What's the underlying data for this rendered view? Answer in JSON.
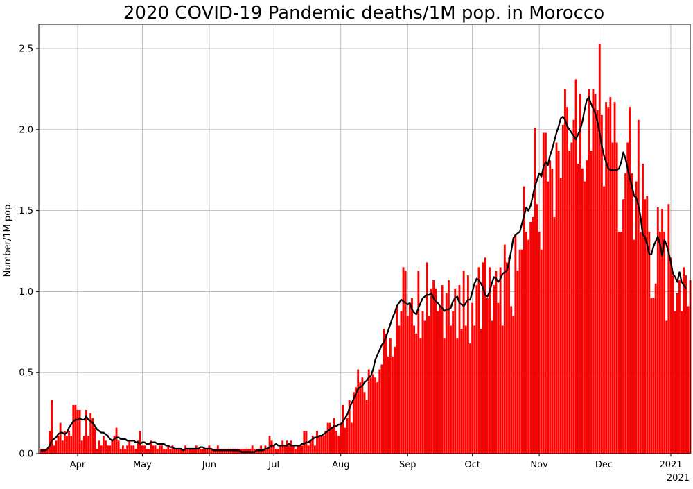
{
  "chart_data": {
    "type": "bar",
    "title": "2020 COVID-19 Pandemic deaths/1M pop. in Morocco",
    "xlabel": "",
    "ylabel": "Number/1M pop.",
    "x_offset_label": "2021",
    "ylim": [
      0,
      2.65
    ],
    "yticks": [
      "0.0",
      "0.5",
      "1.0",
      "1.5",
      "2.0",
      "2.5"
    ],
    "xticks": [
      {
        "label": "Apr",
        "day": 92
      },
      {
        "label": "May",
        "day": 122
      },
      {
        "label": "Jun",
        "day": 153
      },
      {
        "label": "Jul",
        "day": 183
      },
      {
        "label": "Aug",
        "day": 214
      },
      {
        "label": "Sep",
        "day": 245
      },
      {
        "label": "Oct",
        "day": 275
      },
      {
        "label": "Nov",
        "day": 306
      },
      {
        "label": "Dec",
        "day": 336
      },
      {
        "label": "2021",
        "day": 367
      }
    ],
    "grid": true,
    "bar_color": "#ff0000",
    "line_color": "#000000",
    "series": [
      {
        "name": "",
        "kind": "daily",
        "start_date": "2020-03-15",
        "values": [
          0.03,
          0.03,
          0.03,
          0.03,
          0.14,
          0.33,
          0.05,
          0.08,
          0.11,
          0.19,
          0.08,
          0.14,
          0.11,
          0.14,
          0.11,
          0.3,
          0.3,
          0.27,
          0.27,
          0.08,
          0.11,
          0.27,
          0.11,
          0.25,
          0.22,
          0.16,
          0.03,
          0.08,
          0.05,
          0.11,
          0.08,
          0.05,
          0.05,
          0.08,
          0.11,
          0.16,
          0.08,
          0.03,
          0.05,
          0.03,
          0.05,
          0.08,
          0.05,
          0.05,
          0.03,
          0.08,
          0.14,
          0.05,
          0.05,
          0.03,
          0.03,
          0.08,
          0.05,
          0.05,
          0.03,
          0.05,
          0.05,
          0.03,
          0.03,
          0.05,
          0.03,
          0.05,
          0.03,
          0.03,
          0.03,
          0.03,
          0.03,
          0.05,
          0.03,
          0.03,
          0.03,
          0.03,
          0.05,
          0.03,
          0.03,
          0.03,
          0.03,
          0.03,
          0.05,
          0.03,
          0.03,
          0.03,
          0.05,
          0.03,
          0.03,
          0.03,
          0.03,
          0.03,
          0.03,
          0.03,
          0.03,
          0.03,
          0.03,
          0.03,
          0.03,
          0.03,
          0.03,
          0.03,
          0.05,
          0.03,
          0.03,
          0.03,
          0.05,
          0.03,
          0.05,
          0.03,
          0.11,
          0.08,
          0.05,
          0.03,
          0.03,
          0.05,
          0.08,
          0.05,
          0.08,
          0.05,
          0.08,
          0.05,
          0.03,
          0.05,
          0.05,
          0.05,
          0.14,
          0.14,
          0.05,
          0.08,
          0.11,
          0.05,
          0.14,
          0.11,
          0.11,
          0.11,
          0.14,
          0.19,
          0.19,
          0.16,
          0.22,
          0.14,
          0.11,
          0.19,
          0.3,
          0.16,
          0.22,
          0.33,
          0.19,
          0.38,
          0.41,
          0.52,
          0.44,
          0.47,
          0.38,
          0.33,
          0.52,
          0.47,
          0.49,
          0.47,
          0.44,
          0.52,
          0.55,
          0.77,
          0.74,
          0.6,
          0.71,
          0.6,
          0.66,
          0.91,
          0.79,
          0.88,
          1.15,
          1.13,
          0.85,
          0.93,
          0.96,
          0.79,
          0.74,
          1.13,
          0.71,
          0.88,
          0.82,
          1.18,
          0.85,
          1.02,
          1.07,
          1.02,
          0.88,
          0.91,
          1.04,
          0.71,
          0.99,
          1.07,
          0.79,
          0.88,
          1.02,
          0.71,
          1.04,
          0.77,
          1.13,
          0.79,
          1.1,
          0.68,
          0.93,
          0.79,
          1.04,
          1.15,
          0.77,
          1.18,
          1.21,
          0.96,
          1.15,
          0.82,
          1.04,
          1.13,
          0.93,
          1.15,
          0.79,
          1.29,
          1.18,
          1.21,
          0.91,
          0.85,
          1.35,
          1.13,
          1.26,
          1.26,
          1.65,
          1.37,
          1.32,
          1.43,
          1.46,
          2.01,
          1.54,
          1.37,
          1.26,
          1.98,
          1.98,
          1.68,
          1.81,
          1.76,
          1.46,
          1.92,
          1.87,
          1.7,
          2.03,
          2.25,
          2.14,
          1.87,
          1.92,
          2.06,
          2.31,
          1.79,
          2.22,
          1.76,
          1.68,
          1.81,
          2.25,
          1.87,
          2.25,
          2.22,
          2.12,
          2.53,
          2.09,
          1.65,
          2.17,
          2.14,
          2.2,
          1.92,
          2.17,
          1.92,
          1.37,
          1.37,
          1.57,
          1.73,
          1.92,
          2.14,
          1.73,
          1.32,
          1.68,
          2.06,
          1.37,
          1.79,
          1.57,
          1.59,
          1.37,
          0.96,
          0.96,
          1.05,
          1.52,
          1.37,
          1.51,
          1.37,
          0.82,
          1.54,
          1.21,
          1.1,
          0.88,
          0.99,
          1.07,
          0.88,
          1.15,
          1.1,
          0.91,
          1.07
        ]
      },
      {
        "name": "",
        "kind": "rolling-average",
        "start_date": "2020-03-15",
        "values": [
          0.02,
          0.02,
          0.02,
          0.03,
          0.05,
          0.08,
          0.09,
          0.1,
          0.12,
          0.13,
          0.13,
          0.12,
          0.13,
          0.16,
          0.18,
          0.2,
          0.21,
          0.21,
          0.22,
          0.21,
          0.21,
          0.23,
          0.21,
          0.2,
          0.19,
          0.17,
          0.15,
          0.14,
          0.13,
          0.13,
          0.12,
          0.11,
          0.09,
          0.08,
          0.09,
          0.1,
          0.1,
          0.09,
          0.09,
          0.09,
          0.08,
          0.08,
          0.08,
          0.08,
          0.07,
          0.07,
          0.06,
          0.07,
          0.07,
          0.06,
          0.06,
          0.07,
          0.07,
          0.07,
          0.06,
          0.06,
          0.06,
          0.06,
          0.05,
          0.05,
          0.04,
          0.04,
          0.03,
          0.03,
          0.03,
          0.03,
          0.02,
          0.03,
          0.03,
          0.03,
          0.03,
          0.03,
          0.03,
          0.03,
          0.04,
          0.04,
          0.03,
          0.03,
          0.03,
          0.03,
          0.02,
          0.02,
          0.02,
          0.02,
          0.02,
          0.02,
          0.02,
          0.02,
          0.02,
          0.02,
          0.02,
          0.02,
          0.02,
          0.01,
          0.01,
          0.01,
          0.01,
          0.01,
          0.01,
          0.01,
          0.02,
          0.02,
          0.02,
          0.02,
          0.03,
          0.03,
          0.04,
          0.05,
          0.05,
          0.06,
          0.05,
          0.05,
          0.05,
          0.05,
          0.05,
          0.06,
          0.05,
          0.05,
          0.05,
          0.05,
          0.05,
          0.06,
          0.06,
          0.07,
          0.07,
          0.08,
          0.09,
          0.1,
          0.1,
          0.11,
          0.11,
          0.12,
          0.13,
          0.14,
          0.15,
          0.16,
          0.17,
          0.17,
          0.18,
          0.18,
          0.2,
          0.22,
          0.24,
          0.28,
          0.31,
          0.34,
          0.37,
          0.4,
          0.41,
          0.42,
          0.44,
          0.45,
          0.47,
          0.48,
          0.52,
          0.58,
          0.61,
          0.64,
          0.67,
          0.69,
          0.72,
          0.76,
          0.8,
          0.84,
          0.87,
          0.91,
          0.93,
          0.95,
          0.94,
          0.93,
          0.92,
          0.93,
          0.89,
          0.87,
          0.86,
          0.9,
          0.93,
          0.96,
          0.97,
          0.98,
          0.98,
          0.99,
          0.96,
          0.94,
          0.93,
          0.91,
          0.9,
          0.88,
          0.89,
          0.89,
          0.9,
          0.94,
          0.96,
          0.97,
          0.93,
          0.92,
          0.91,
          0.93,
          0.95,
          0.95,
          1.0,
          1.05,
          1.08,
          1.07,
          1.05,
          1.02,
          0.98,
          0.97,
          1.0,
          1.05,
          1.09,
          1.08,
          1.06,
          1.08,
          1.11,
          1.12,
          1.13,
          1.18,
          1.25,
          1.33,
          1.35,
          1.36,
          1.37,
          1.42,
          1.47,
          1.52,
          1.5,
          1.53,
          1.59,
          1.65,
          1.69,
          1.73,
          1.71,
          1.77,
          1.8,
          1.78,
          1.84,
          1.88,
          1.93,
          1.98,
          2.02,
          2.07,
          2.08,
          2.06,
          2.02,
          2.0,
          1.98,
          1.96,
          1.94,
          1.97,
          2.0,
          2.05,
          2.12,
          2.18,
          2.2,
          2.16,
          2.13,
          2.1,
          2.05,
          1.98,
          1.9,
          1.84,
          1.8,
          1.76,
          1.75,
          1.75,
          1.75,
          1.75,
          1.76,
          1.8,
          1.86,
          1.82,
          1.76,
          1.7,
          1.65,
          1.59,
          1.58,
          1.53,
          1.46,
          1.35,
          1.34,
          1.29,
          1.23,
          1.23,
          1.28,
          1.31,
          1.34,
          1.29,
          1.22,
          1.32,
          1.29,
          1.24,
          1.18,
          1.11,
          1.09,
          1.06,
          1.12,
          1.06,
          1.04,
          1.02
        ]
      }
    ]
  }
}
